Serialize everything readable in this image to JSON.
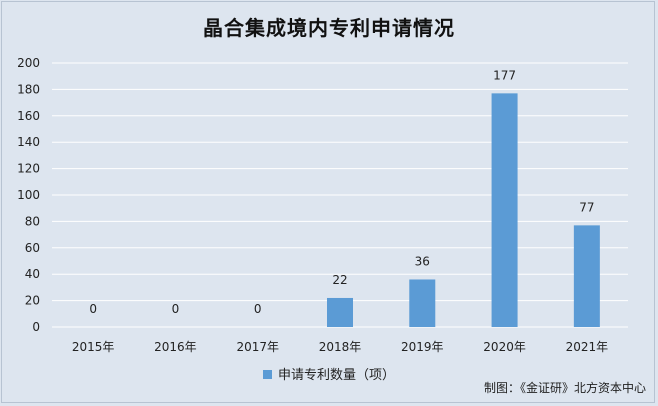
{
  "chart_data": {
    "type": "bar",
    "title": "晶合集成境内专利申请情况",
    "categories": [
      "2015年",
      "2016年",
      "2017年",
      "2018年",
      "2019年",
      "2020年",
      "2021年"
    ],
    "series": [
      {
        "name": "申请专利数量（项）",
        "values": [
          0,
          0,
          0,
          22,
          36,
          177,
          77
        ]
      }
    ],
    "ylim": [
      0,
      200
    ],
    "yticks": [
      "0",
      "20",
      "40",
      "60",
      "80",
      "100",
      "120",
      "140",
      "160",
      "180",
      "200"
    ],
    "grid": true,
    "legend_position": "bottom",
    "bar_color": "#5b9bd5"
  },
  "source": "制图：《金证研》北方资本中心"
}
